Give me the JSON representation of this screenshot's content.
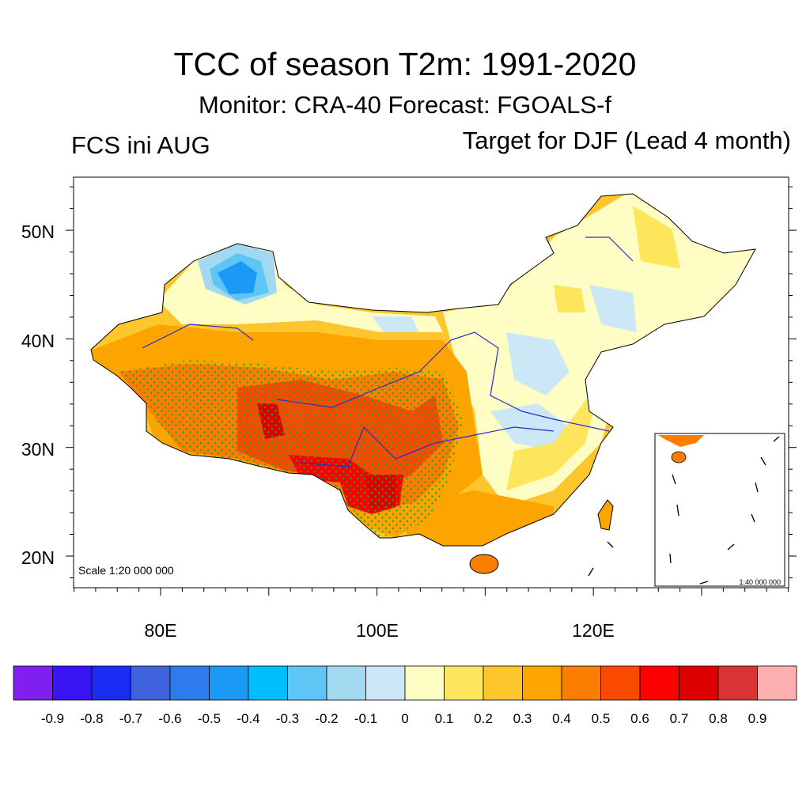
{
  "header": {
    "title": "TCC of season T2m: 1991-2020",
    "subtitle": "Monitor: CRA-40   Forecast: FGOALS-f",
    "left_label": "FCS ini AUG",
    "right_label": "Target for DJF (Lead 4 month)"
  },
  "map": {
    "lat_labels": [
      "50N",
      "40N",
      "30N",
      "20N"
    ],
    "lon_labels": [
      "80E",
      "100E",
      "120E"
    ],
    "scale_label": "Scale 1:20 000 000",
    "inset_scale_label": "1:40 000 000",
    "lon_range": [
      72,
      138
    ],
    "lat_range": [
      17,
      55
    ]
  },
  "colorbar": {
    "tick_labels": [
      "-0.9",
      "-0.8",
      "-0.7",
      "-0.6",
      "-0.5",
      "-0.4",
      "-0.3",
      "-0.2",
      "-0.1",
      "0",
      "0.1",
      "0.2",
      "0.3",
      "0.4",
      "0.5",
      "0.6",
      "0.7",
      "0.8",
      "0.9"
    ],
    "colors": [
      "#8020f0",
      "#3a14f4",
      "#1a2cf2",
      "#3f62de",
      "#2e7bee",
      "#1a99f5",
      "#00bdfc",
      "#5dc6f4",
      "#a3d8f1",
      "#cce8f6",
      "#fefdc3",
      "#fde65c",
      "#fec62d",
      "#fca500",
      "#fb7e00",
      "#fa4a00",
      "#fd0000",
      "#dc0000",
      "#d93333",
      "#fdb0b0"
    ]
  }
}
